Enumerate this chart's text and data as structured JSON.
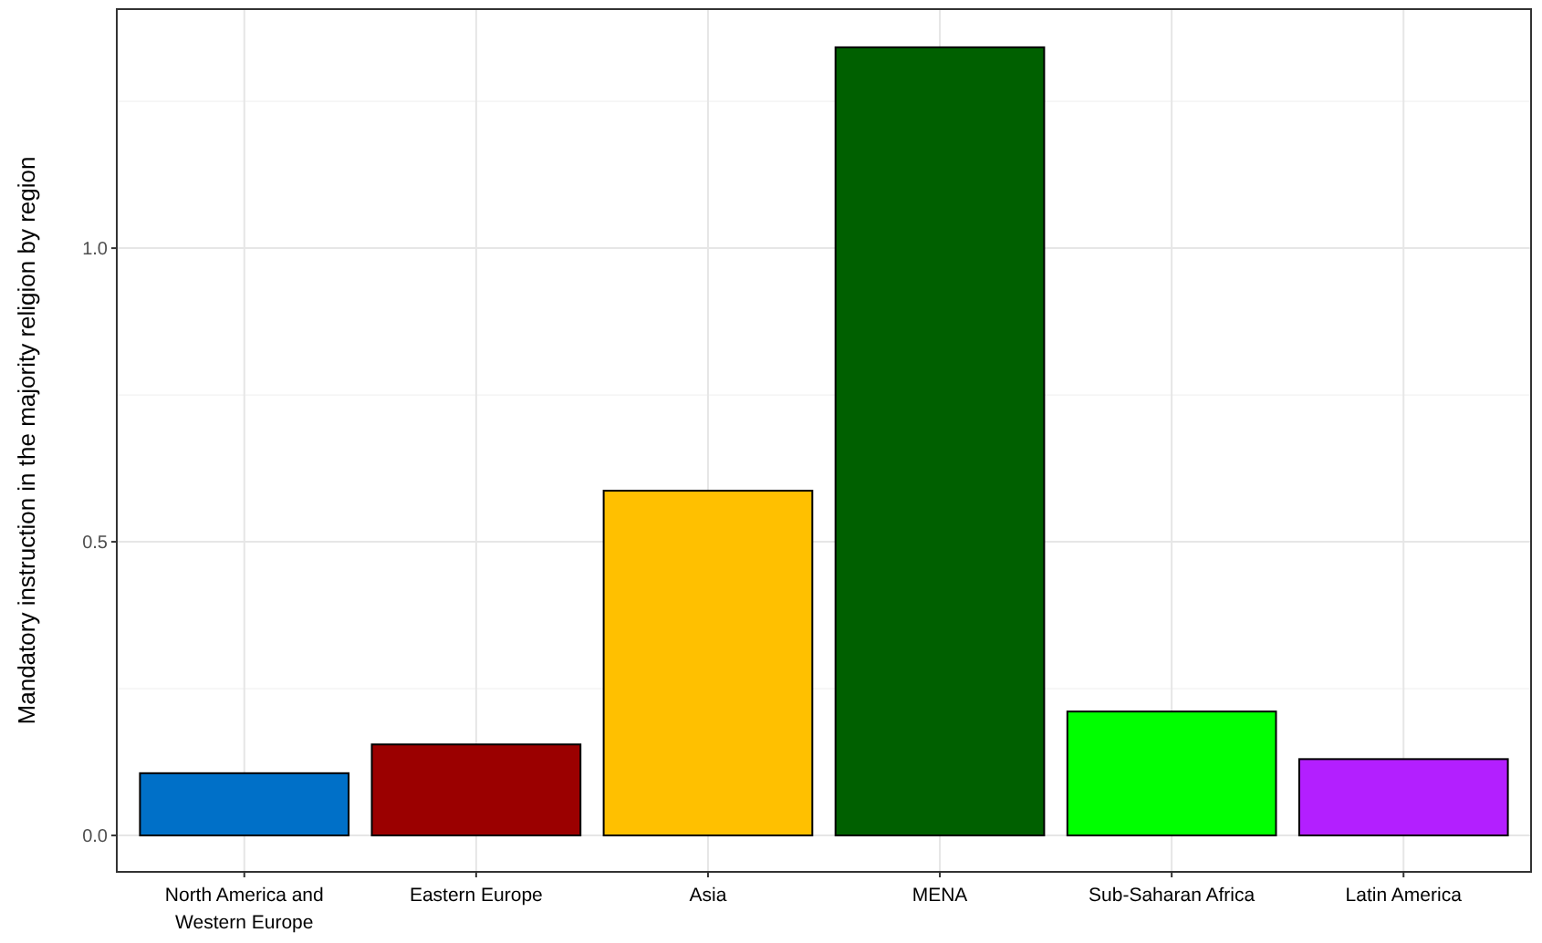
{
  "chart_data": {
    "type": "bar",
    "ylabel": "Mandatory instruction in the majority religion by region",
    "categories": [
      "North America and Western Europe",
      "Eastern Europe",
      "Asia",
      "MENA",
      "Sub-Saharan Africa",
      "Latin America"
    ],
    "values": [
      0.106,
      0.155,
      0.587,
      1.342,
      0.211,
      0.13
    ],
    "colors": [
      "#0070c8",
      "#9b0000",
      "#ffc000",
      "#006000",
      "#00ff00",
      "#b31fff"
    ],
    "ylim": [
      -0.062,
      1.407
    ],
    "yticks": [
      {
        "value": 0,
        "label": "0.0"
      },
      {
        "value": 0.5,
        "label": "0.5"
      },
      {
        "value": 1,
        "label": "1.0"
      }
    ],
    "grid": true
  }
}
